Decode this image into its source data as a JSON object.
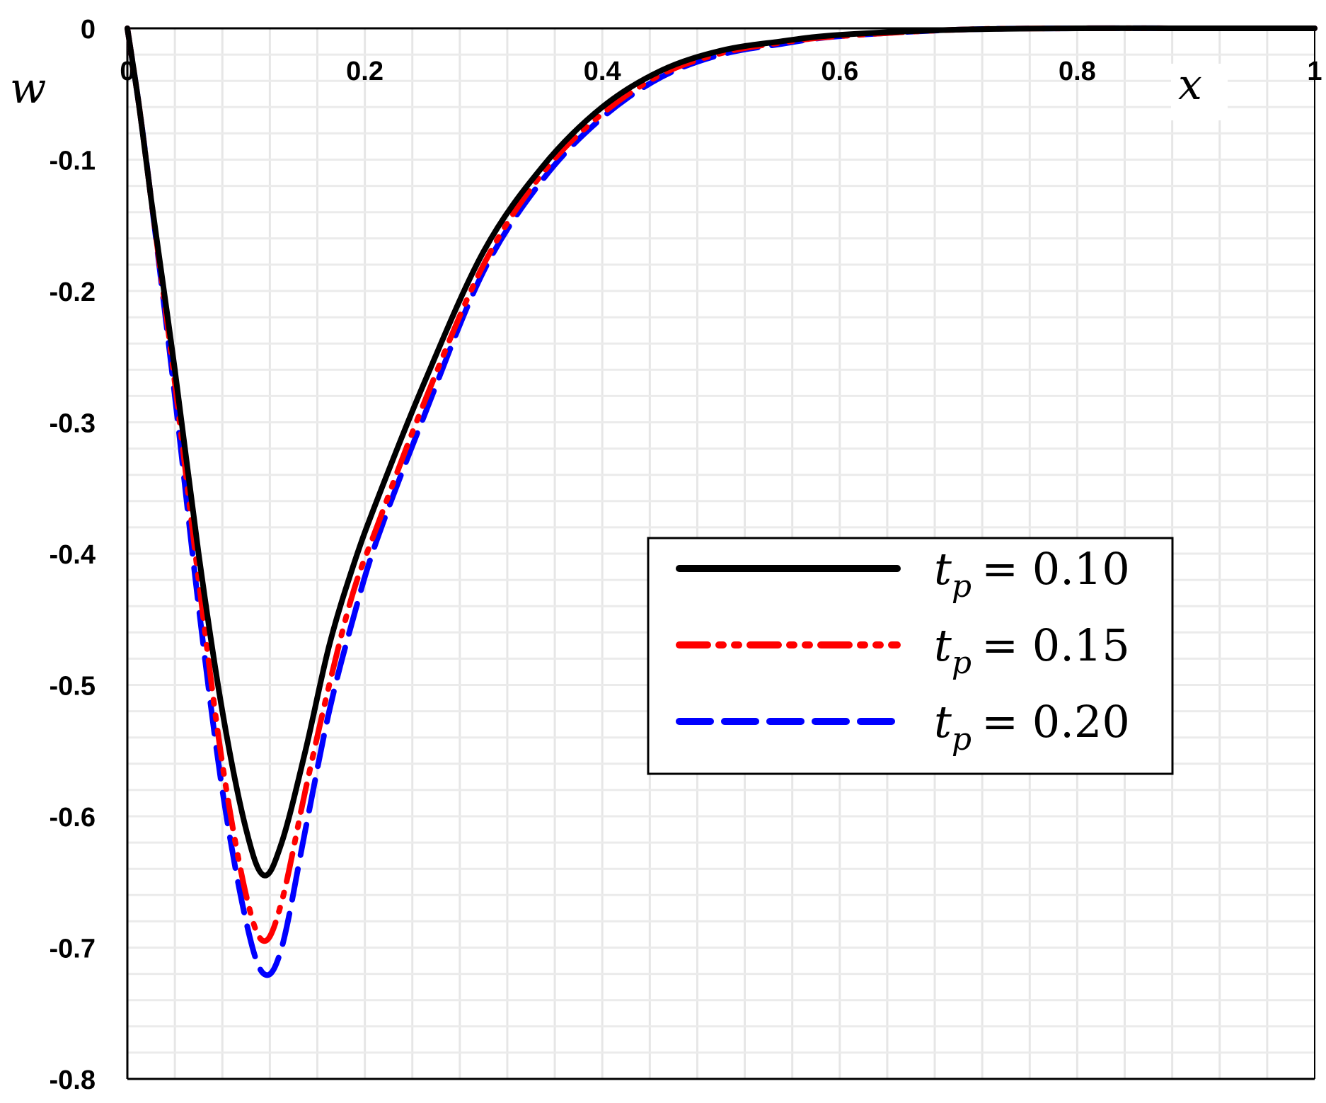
{
  "chart_data": {
    "type": "line",
    "title": "",
    "xlabel": "x",
    "ylabel": "w",
    "xlim": [
      0,
      1
    ],
    "ylim": [
      -0.8,
      0
    ],
    "grid": true,
    "legend_position": "center-right",
    "x_ticks": [
      "0",
      "0.2",
      "0.4",
      "0.6",
      "0.8",
      "1"
    ],
    "y_ticks": [
      "0",
      "-0.1",
      "-0.2",
      "-0.3",
      "-0.4",
      "-0.5",
      "-0.6",
      "-0.7",
      "-0.8"
    ],
    "x": [
      0,
      0.01,
      0.02,
      0.04,
      0.06,
      0.08,
      0.1,
      0.115,
      0.13,
      0.15,
      0.17,
      0.19,
      0.21,
      0.25,
      0.3,
      0.35,
      0.4,
      0.45,
      0.5,
      0.55,
      0.6,
      0.7,
      0.8,
      0.9,
      1.0
    ],
    "series": [
      {
        "name": "t_p = 0.10",
        "legend_var": "t",
        "legend_sub": "p",
        "legend_value": "= 0.10",
        "color": "#000000",
        "style": "solid",
        "values": [
          0,
          -0.06,
          -0.13,
          -0.26,
          -0.4,
          -0.52,
          -0.61,
          -0.645,
          -0.62,
          -0.55,
          -0.47,
          -0.41,
          -0.36,
          -0.27,
          -0.17,
          -0.105,
          -0.06,
          -0.032,
          -0.017,
          -0.01,
          -0.005,
          -0.001,
          0,
          0,
          0
        ]
      },
      {
        "name": "t_p = 0.15",
        "legend_var": "t",
        "legend_sub": "p",
        "legend_value": "= 0.15",
        "color": "#ff0000",
        "style": "dash-dot-dot",
        "values": [
          0,
          -0.06,
          -0.13,
          -0.27,
          -0.42,
          -0.56,
          -0.66,
          -0.695,
          -0.665,
          -0.58,
          -0.5,
          -0.43,
          -0.38,
          -0.285,
          -0.18,
          -0.11,
          -0.065,
          -0.035,
          -0.019,
          -0.011,
          -0.006,
          -0.001,
          0,
          0,
          0
        ]
      },
      {
        "name": "t_p = 0.20",
        "legend_var": "t",
        "legend_sub": "p",
        "legend_value": "= 0.20",
        "color": "#0000ff",
        "style": "dashed",
        "values": [
          0,
          -0.06,
          -0.13,
          -0.28,
          -0.44,
          -0.58,
          -0.68,
          -0.72,
          -0.7,
          -0.61,
          -0.52,
          -0.45,
          -0.39,
          -0.295,
          -0.185,
          -0.115,
          -0.068,
          -0.037,
          -0.02,
          -0.012,
          -0.006,
          -0.001,
          0,
          0,
          0
        ]
      }
    ]
  }
}
